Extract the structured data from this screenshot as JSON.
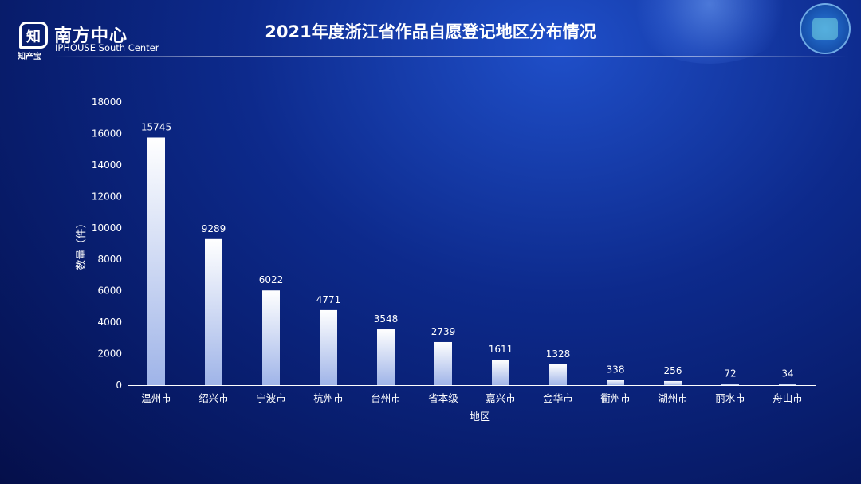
{
  "header": {
    "logo_char": "知",
    "logo_sub": "知产宝",
    "brand_cn": "南方中心",
    "brand_en": "IPHOUSE South Center"
  },
  "chart_data": {
    "type": "bar",
    "title": "2021年度浙江省作品自愿登记地区分布情况",
    "xlabel": "地区",
    "ylabel": "数量（件）",
    "ylim": [
      0,
      18000
    ],
    "yticks": [
      0,
      2000,
      4000,
      6000,
      8000,
      10000,
      12000,
      14000,
      16000,
      18000
    ],
    "categories": [
      "温州市",
      "绍兴市",
      "宁波市",
      "杭州市",
      "台州市",
      "省本级",
      "嘉兴市",
      "金华市",
      "衢州市",
      "湖州市",
      "丽水市",
      "舟山市"
    ],
    "values": [
      15745,
      9289,
      6022,
      4771,
      3548,
      2739,
      1611,
      1328,
      338,
      256,
      72,
      34
    ],
    "grid": false,
    "legend": "none",
    "colors": {
      "bar_top": "#ffffff",
      "bar_bottom": "#9fb4e8",
      "axis": "#ffffff"
    }
  }
}
